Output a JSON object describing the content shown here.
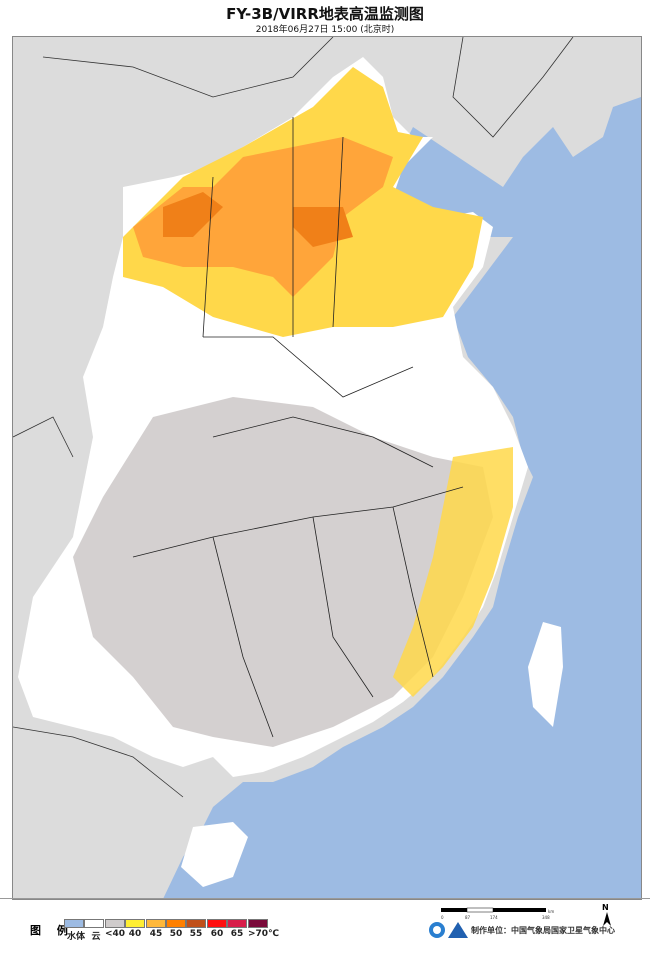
{
  "title": "FY-3B/VIRR地表高温监测图",
  "subtitle": "2018年06月27日  15:00 (北京时)",
  "legend": {
    "title": "图 例",
    "items": [
      {
        "label": "水体",
        "color": "#9dbbe3"
      },
      {
        "label": "云",
        "color": "#ffffff"
      },
      {
        "label": "<40",
        "color": "#cfcbcb"
      },
      {
        "label": "40",
        "color": "#ffee33"
      },
      {
        "label": "45",
        "color": "#ffb83a"
      },
      {
        "label": "50",
        "color": "#ff8000"
      },
      {
        "label": "55",
        "color": "#c0501a"
      },
      {
        "label": "60",
        "color": "#ff1010"
      },
      {
        "label": "65",
        "color": "#d81e4a"
      },
      {
        "label": ">70℃",
        "color": "#7a0a3a"
      }
    ]
  },
  "scale_bar": {
    "labels": [
      "0",
      "87",
      "174",
      "348"
    ],
    "unit": "km"
  },
  "north_arrow": "N",
  "producer": "制作单位：中国气象局国家卫星气象中心",
  "colors": {
    "sea": "#9dbbe3",
    "foreign_land": "#dcdcdc"
  }
}
